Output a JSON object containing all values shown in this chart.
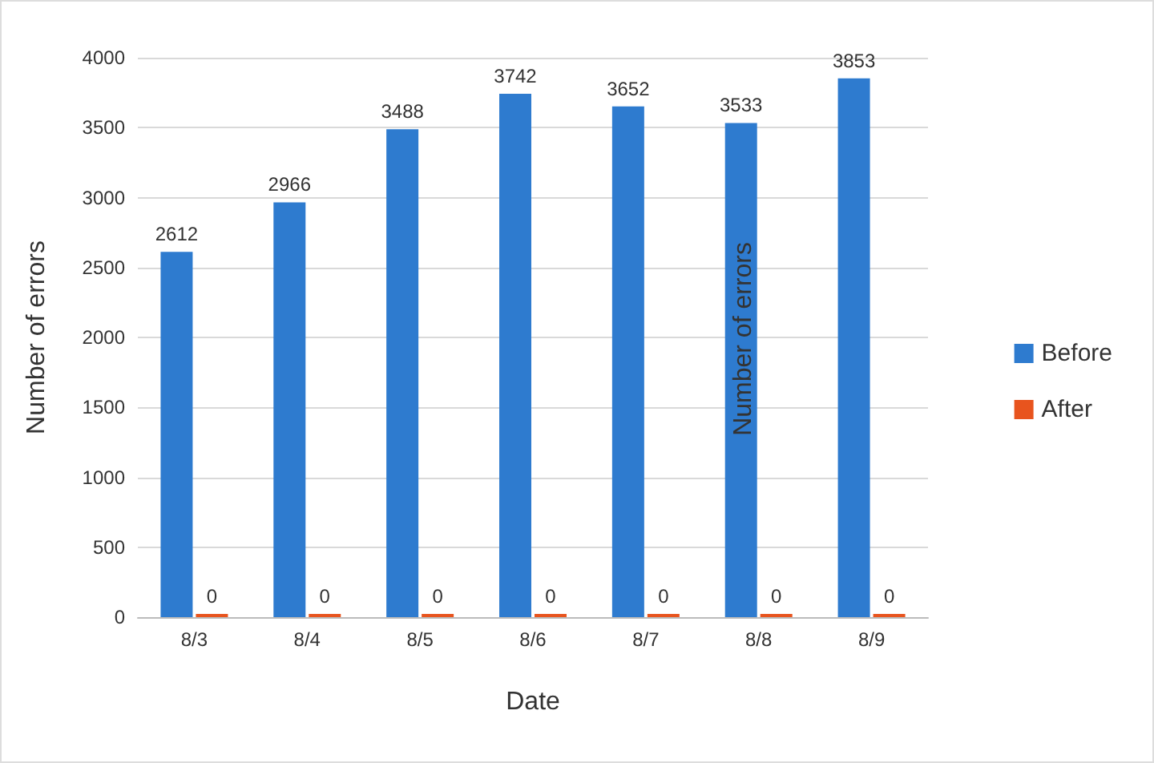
{
  "chart_data": {
    "type": "bar",
    "xlabel": "Date",
    "ylabel": "Number of errors",
    "categories": [
      "8/3",
      "8/4",
      "8/5",
      "8/6",
      "8/7",
      "8/8",
      "8/9"
    ],
    "series": [
      {
        "name": "Before",
        "color": "#2e7bcf",
        "values": [
          2612,
          2966,
          3488,
          3742,
          3652,
          3533,
          3853
        ]
      },
      {
        "name": "After",
        "color": "#e8541e",
        "values": [
          0,
          0,
          0,
          0,
          0,
          0,
          0
        ]
      }
    ],
    "ylim": [
      0,
      4000
    ],
    "yticks": [
      0,
      500,
      1000,
      1500,
      2000,
      2500,
      3000,
      3500,
      4000
    ],
    "grid": "y",
    "legend": "right",
    "data_labels": true,
    "annotations": [
      "Number of errors"
    ]
  }
}
